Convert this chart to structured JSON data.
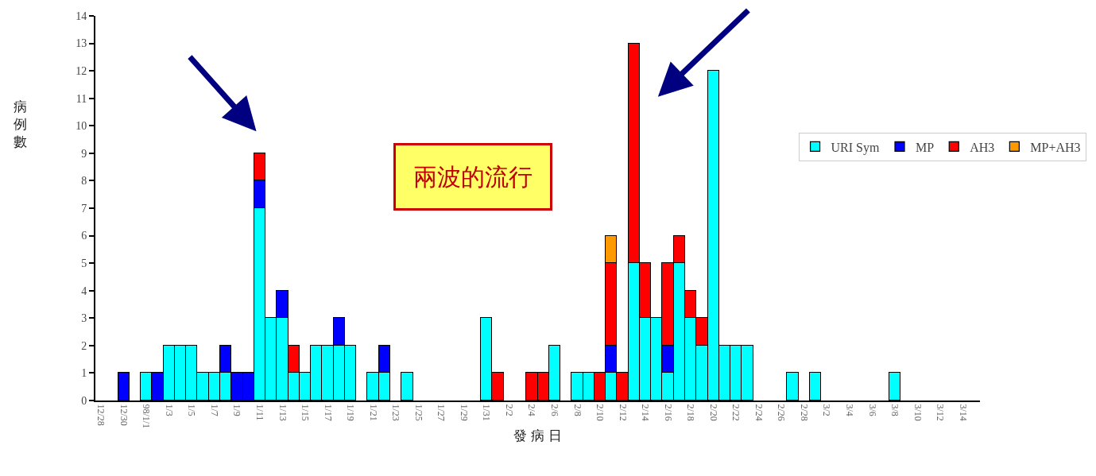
{
  "chart_data": {
    "type": "bar",
    "stacked": true,
    "xlabel": "發 病 日",
    "ylabel": "病例數",
    "annotations": [
      "兩波的流行"
    ],
    "categories": [
      "12/28",
      null,
      "12/30",
      null,
      "98/1/1",
      null,
      "1/3",
      null,
      "1/5",
      null,
      "1/7",
      null,
      "1/9",
      null,
      "1/11",
      null,
      "1/13",
      null,
      "1/15",
      null,
      "1/17",
      null,
      "1/19",
      null,
      "1/21",
      null,
      "1/23",
      null,
      "1/25",
      null,
      "1/27",
      null,
      "1/29",
      null,
      "1/31",
      null,
      "2/2",
      null,
      "2/4",
      null,
      "2/6",
      null,
      "2/8",
      null,
      "2/10",
      null,
      "2/12",
      null,
      "2/14",
      null,
      "2/16",
      null,
      "2/18",
      null,
      "2/20",
      null,
      "2/22",
      null,
      "2/24",
      null,
      "2/26",
      null,
      "2/28",
      null,
      "3/2",
      null,
      "3/4",
      null,
      "3/6",
      null,
      "3/8",
      null,
      "3/10",
      null,
      "3/12",
      null,
      "3/14",
      null
    ],
    "series": [
      {
        "name": "URI Sym",
        "color": "#00ffff",
        "values": [
          null,
          null,
          null,
          null,
          1,
          null,
          2,
          2,
          2,
          1,
          1,
          1,
          null,
          null,
          7,
          3,
          3,
          1,
          1,
          2,
          2,
          2,
          2,
          null,
          1,
          1,
          null,
          1,
          null,
          null,
          null,
          null,
          null,
          null,
          3,
          null,
          null,
          null,
          null,
          null,
          2,
          null,
          1,
          1,
          null,
          1,
          null,
          5,
          3,
          3,
          1,
          5,
          3,
          2,
          12,
          2,
          2,
          2,
          null,
          null,
          null,
          1,
          null,
          1,
          null,
          null,
          null,
          null,
          null,
          null,
          1,
          null,
          null,
          null,
          null,
          null,
          null,
          null
        ]
      },
      {
        "name": "MP",
        "color": "#0000ff",
        "values": [
          null,
          null,
          1,
          null,
          null,
          1,
          null,
          null,
          null,
          null,
          null,
          1,
          1,
          1,
          1,
          null,
          1,
          null,
          null,
          null,
          null,
          1,
          null,
          null,
          null,
          1,
          null,
          null,
          null,
          null,
          null,
          null,
          null,
          null,
          null,
          null,
          null,
          null,
          null,
          null,
          null,
          null,
          null,
          null,
          null,
          1,
          null,
          null,
          null,
          null,
          1,
          null,
          null,
          null,
          null,
          null,
          null,
          null,
          null,
          null,
          null,
          null,
          null,
          null,
          null,
          null,
          null,
          null,
          null,
          null,
          null,
          null,
          null,
          null,
          null,
          null,
          null,
          null
        ]
      },
      {
        "name": "AH3",
        "color": "#ff0000",
        "values": [
          null,
          null,
          null,
          null,
          null,
          null,
          null,
          null,
          null,
          null,
          null,
          null,
          null,
          null,
          1,
          null,
          null,
          1,
          null,
          null,
          null,
          null,
          null,
          null,
          null,
          null,
          null,
          null,
          null,
          null,
          null,
          null,
          null,
          null,
          null,
          1,
          null,
          null,
          1,
          1,
          null,
          null,
          null,
          null,
          1,
          3,
          1,
          8,
          2,
          null,
          3,
          1,
          1,
          1,
          null,
          null,
          null,
          null,
          null,
          null,
          null,
          null,
          null,
          null,
          null,
          null,
          null,
          null,
          null,
          null,
          null,
          null,
          null,
          null,
          null,
          null,
          null,
          null
        ]
      },
      {
        "name": "MP+AH3",
        "color": "#ff9900",
        "values": [
          null,
          null,
          null,
          null,
          null,
          null,
          null,
          null,
          null,
          null,
          null,
          null,
          null,
          null,
          null,
          null,
          null,
          null,
          null,
          null,
          null,
          null,
          null,
          null,
          null,
          null,
          null,
          null,
          null,
          null,
          null,
          null,
          null,
          null,
          null,
          null,
          null,
          null,
          null,
          null,
          null,
          null,
          null,
          null,
          null,
          1,
          null,
          null,
          null,
          null,
          null,
          null,
          null,
          null,
          null,
          null,
          null,
          null,
          null,
          null,
          null,
          null,
          null,
          null,
          null,
          null,
          null,
          null,
          null,
          null,
          null,
          null,
          null,
          null,
          null,
          null,
          null,
          null
        ]
      }
    ],
    "ylim": [
      0,
      14
    ],
    "yticks": [
      0,
      1,
      2,
      3,
      4,
      5,
      6,
      7,
      8,
      9,
      10,
      11,
      12,
      13,
      14
    ],
    "legend": "right"
  }
}
